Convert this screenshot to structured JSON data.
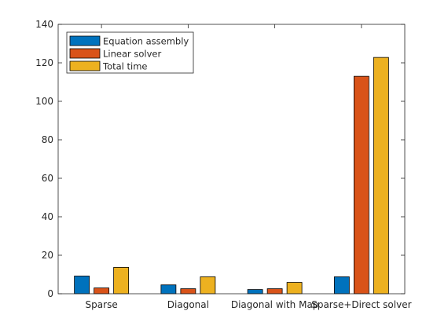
{
  "chart_data": {
    "type": "bar",
    "categories": [
      "Sparse",
      "Diagonal",
      "Diagonal with Map",
      "Sparse+Direct solver"
    ],
    "series": [
      {
        "name": "Equation assembly",
        "color": "#0072BD",
        "values": [
          9.2,
          4.6,
          2.2,
          8.8
        ]
      },
      {
        "name": "Linear solver",
        "color": "#D95319",
        "values": [
          3.0,
          2.6,
          2.6,
          113.0
        ]
      },
      {
        "name": "Total time",
        "color": "#EDB120",
        "values": [
          13.7,
          8.8,
          5.9,
          122.8
        ]
      }
    ],
    "xlabel": "",
    "ylabel": "",
    "ylim": [
      0,
      140
    ],
    "yticks": [
      0,
      20,
      40,
      60,
      80,
      100,
      120,
      140
    ],
    "legend_position": "top-left",
    "grid": false
  }
}
